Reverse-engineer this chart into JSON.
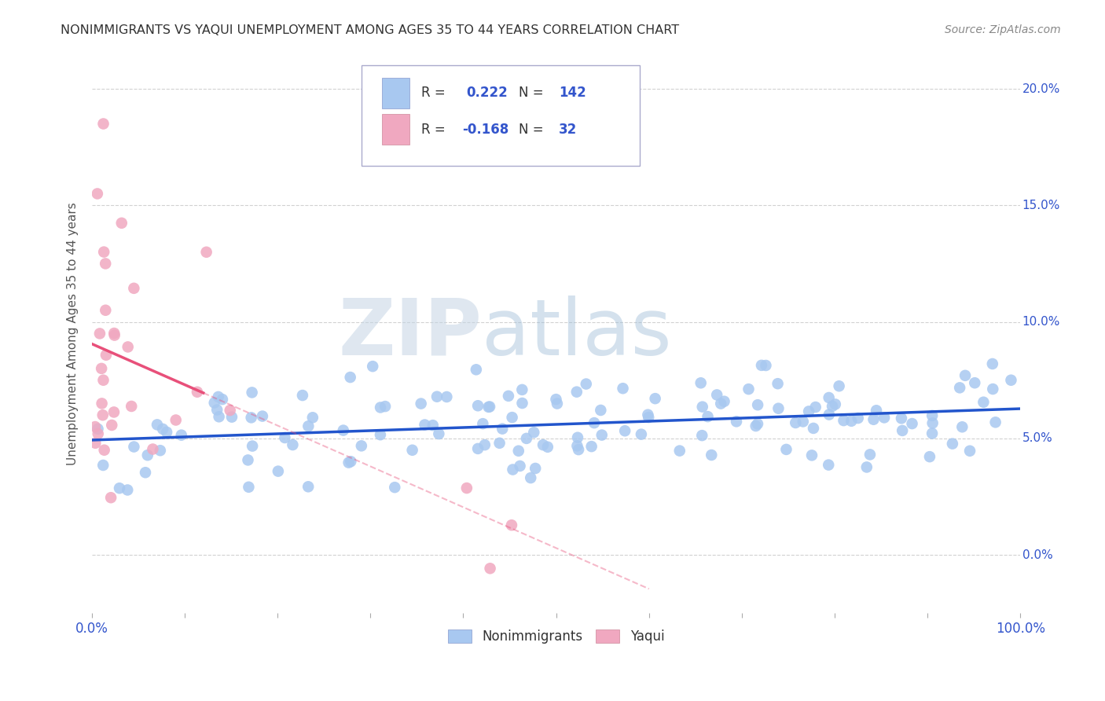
{
  "title": "NONIMMIGRANTS VS YAQUI UNEMPLOYMENT AMONG AGES 35 TO 44 YEARS CORRELATION CHART",
  "source": "Source: ZipAtlas.com",
  "ylabel": "Unemployment Among Ages 35 to 44 years",
  "xlim": [
    0,
    1.0
  ],
  "ylim": [
    -0.025,
    0.215
  ],
  "yticks": [
    0.0,
    0.05,
    0.1,
    0.15,
    0.2
  ],
  "ytick_labels": [
    "0.0%",
    "5.0%",
    "10.0%",
    "15.0%",
    "20.0%"
  ],
  "nonimmigrants_R": 0.222,
  "nonimmigrants_N": 142,
  "yaqui_R": -0.168,
  "yaqui_N": 32,
  "nonimmigrants_color": "#a8c8f0",
  "yaqui_color": "#f0a8c0",
  "nonimmigrants_line_color": "#2255cc",
  "yaqui_line_color": "#e8507a",
  "background_color": "#ffffff",
  "grid_color": "#cccccc",
  "watermark_zip": "ZIP",
  "watermark_atlas": "atlas",
  "watermark_zip_color": "#c8d8e8",
  "watermark_atlas_color": "#a8c0d8",
  "legend_label_1": "Nonimmigrants",
  "legend_label_2": "Yaqui",
  "title_color": "#333333",
  "axis_label_color": "#555555",
  "tick_color": "#3355cc",
  "stat_color": "#3355cc",
  "stat_text_color": "#333333"
}
